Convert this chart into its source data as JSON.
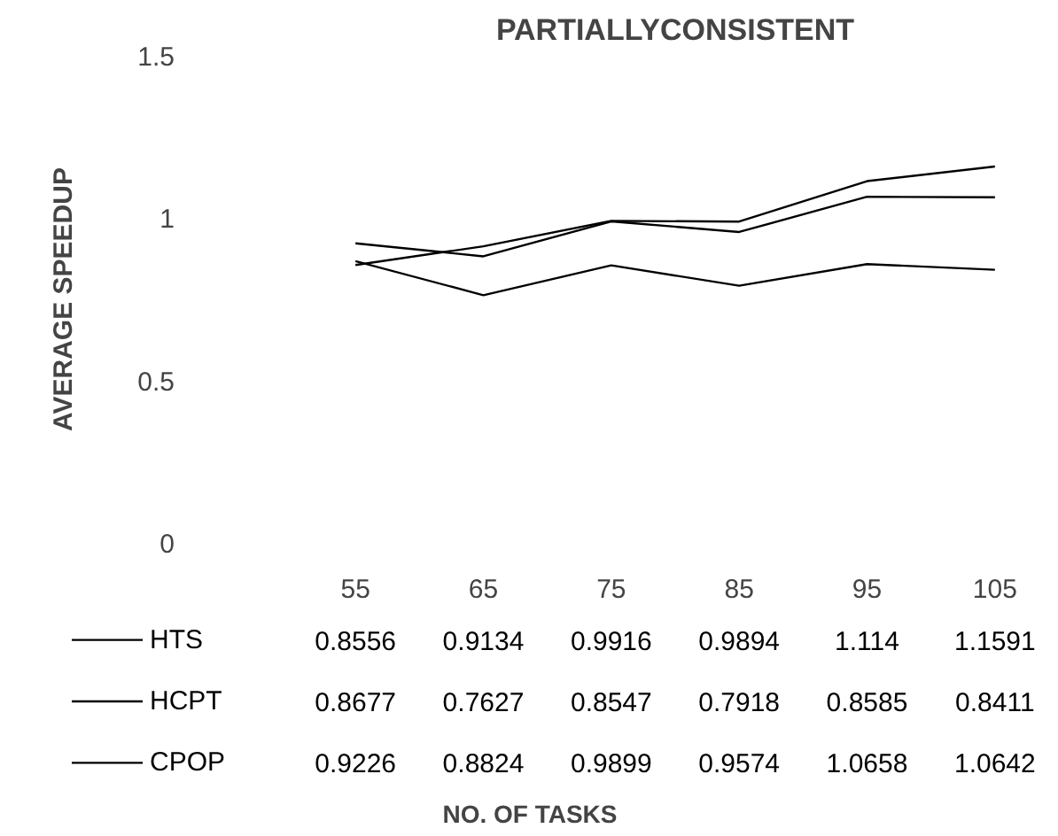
{
  "chart_data": {
    "type": "line",
    "title": "PARTIALLYCONSISTENT",
    "annotations": [
      "NO. OF TASKS"
    ],
    "ylabel": "AVERAGE SPEEDUP",
    "categories": [
      "55",
      "65",
      "75",
      "85",
      "95",
      "105"
    ],
    "series": [
      {
        "name": "HTS",
        "color": "#000000",
        "values": [
          0.8556,
          0.9134,
          0.9916,
          0.9894,
          1.114,
          1.1591
        ]
      },
      {
        "name": "HCPT",
        "color": "#000000",
        "values": [
          0.8677,
          0.7627,
          0.8547,
          0.7918,
          0.8585,
          0.8411
        ]
      },
      {
        "name": "CPOP",
        "color": "#000000",
        "values": [
          0.9226,
          0.8824,
          0.9899,
          0.9574,
          1.0658,
          1.0642
        ]
      }
    ],
    "ylim": [
      0,
      1.5
    ],
    "yticks": [
      0,
      0.5,
      1,
      1.5
    ],
    "grid": false,
    "legend": "bottom",
    "data_labels": true,
    "marker": "none",
    "line_style": "solid"
  }
}
